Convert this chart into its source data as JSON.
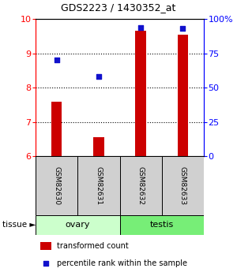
{
  "title": "GDS2223 / 1430352_at",
  "samples": [
    "GSM82630",
    "GSM82631",
    "GSM82632",
    "GSM82633"
  ],
  "tissue_groups": [
    {
      "label": "ovary",
      "n_samples": 2,
      "color": "#ccffcc"
    },
    {
      "label": "testis",
      "n_samples": 2,
      "color": "#77ee77"
    }
  ],
  "bar_values": [
    7.6,
    6.55,
    9.65,
    9.55
  ],
  "bar_bottom": 6.0,
  "percentile_values": [
    70,
    58,
    94,
    93
  ],
  "ylim_left": [
    6,
    10
  ],
  "yticks_left": [
    6,
    7,
    8,
    9,
    10
  ],
  "yticks_right": [
    0,
    25,
    50,
    75,
    100
  ],
  "bar_color": "#cc0000",
  "dot_color": "#1111cc",
  "bar_width": 0.25,
  "legend_bar_label": "transformed count",
  "legend_dot_label": "percentile rank within the sample",
  "tissue_label": "tissue ►"
}
